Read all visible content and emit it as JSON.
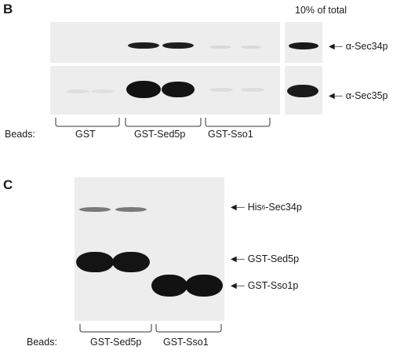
{
  "panel_b": {
    "letter": "B",
    "header": "10% of total",
    "arrows": [
      "α-Sec34p",
      "α-Sec35p"
    ],
    "beads_label": "Beads:",
    "groups": [
      "GST",
      "GST-Sed5p",
      "GST-Sso1"
    ]
  },
  "panel_c": {
    "letter": "C",
    "arrows": {
      "his_prefix": "His",
      "his_sub": "6",
      "his_suffix": "-Sec34p",
      "sed5": "GST-Sed5p",
      "sso1": "GST-Sso1p"
    },
    "beads_label": "Beads:",
    "groups": [
      "GST-Sed5p",
      "GST-Sso1"
    ]
  },
  "colors": {
    "blot_bg": "#ededed",
    "band": "#141414",
    "faint": "#9a9a9a"
  }
}
